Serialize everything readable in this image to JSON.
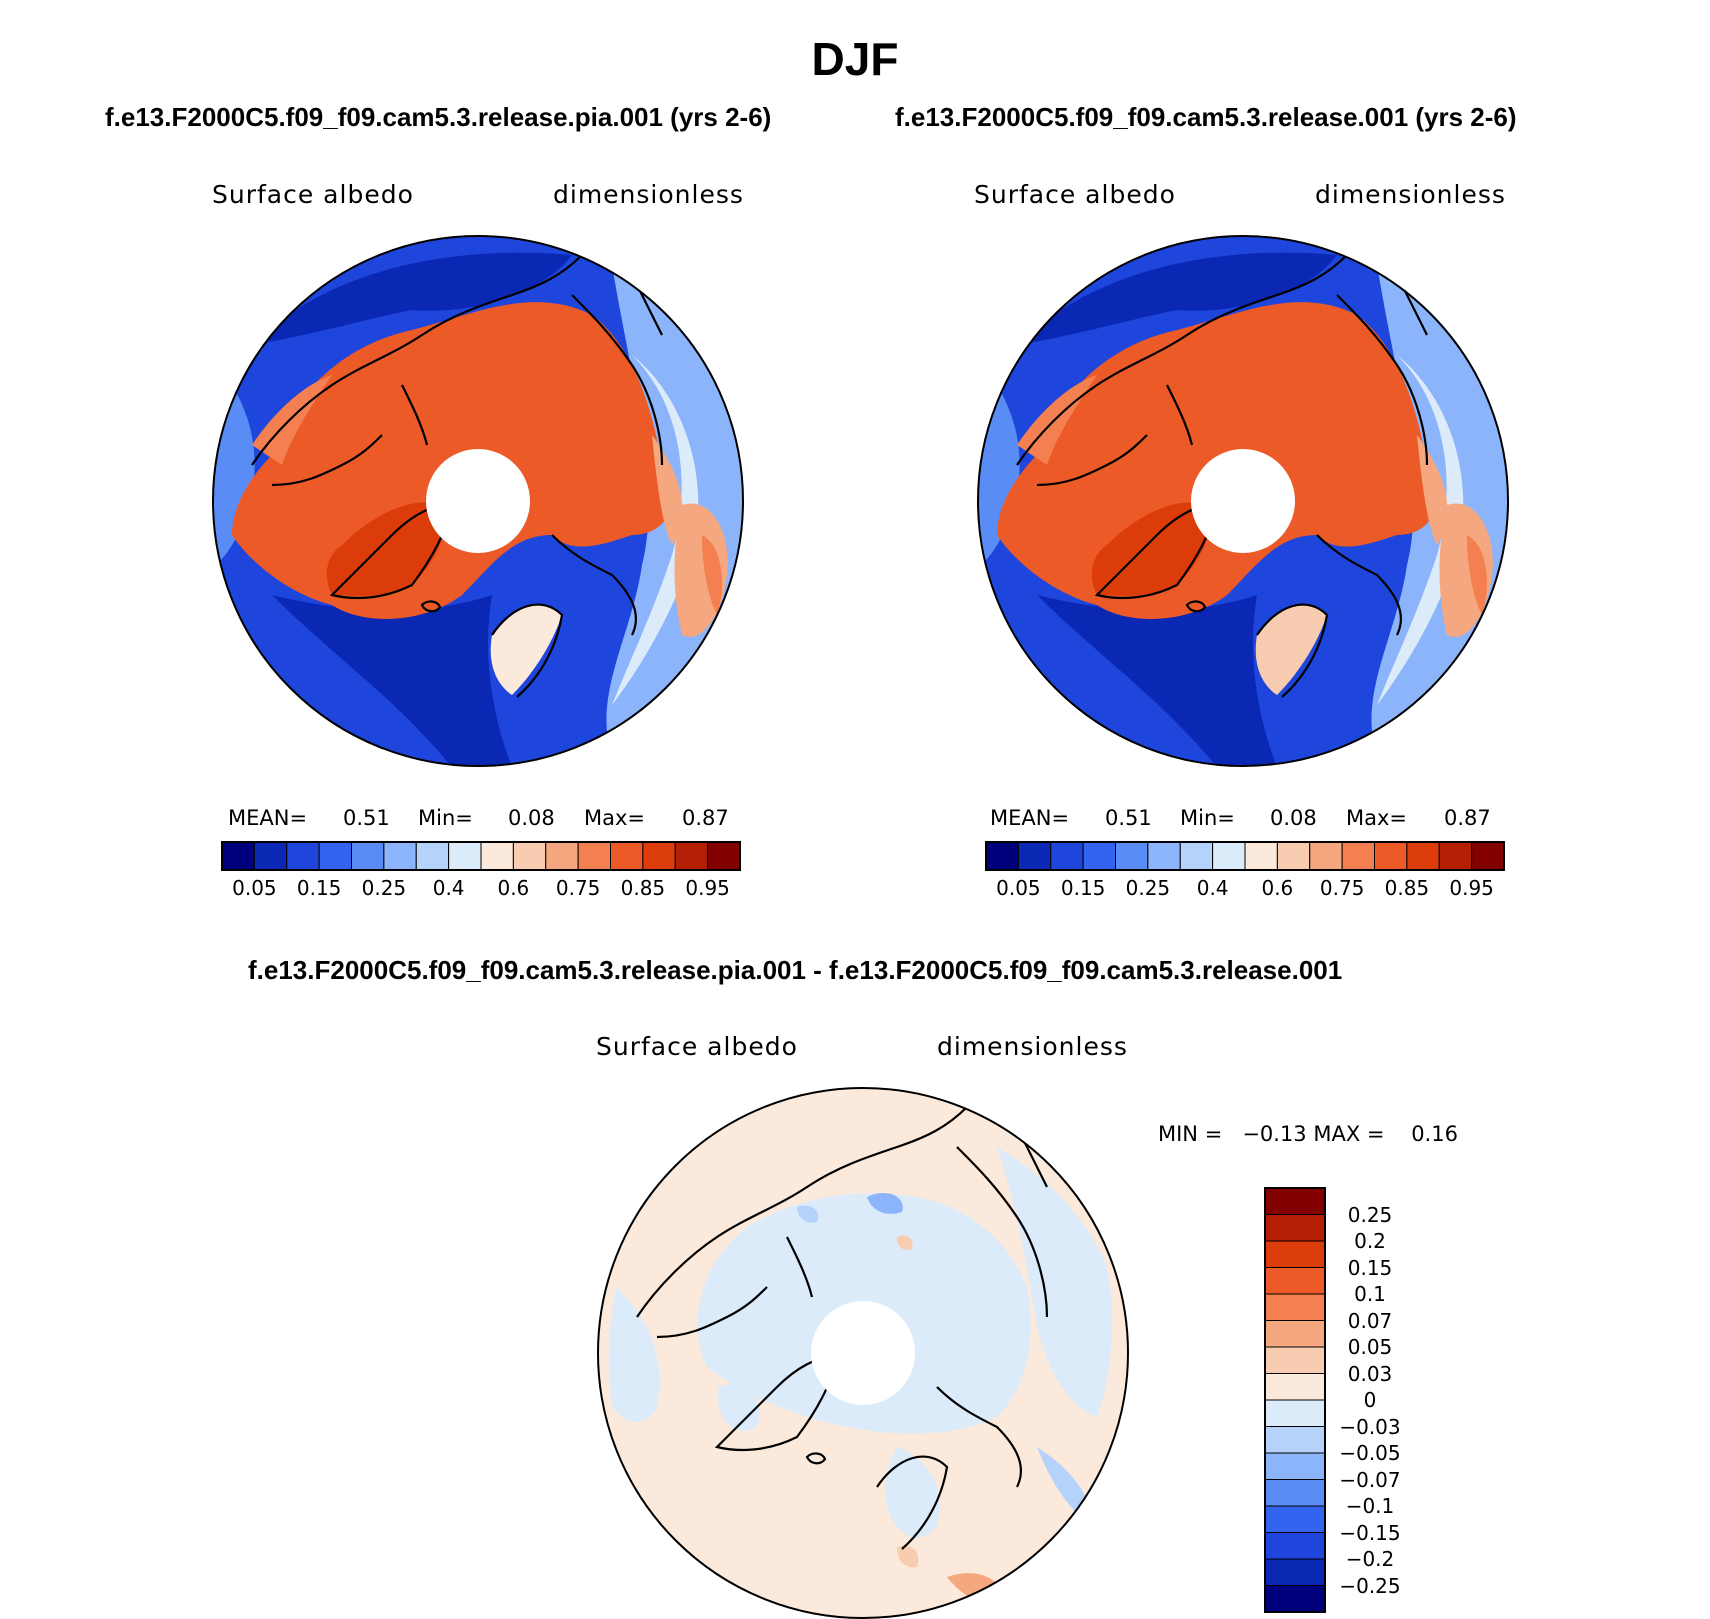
{
  "title": "DJF",
  "panels": {
    "case1": {
      "title": "f.e13.F2000C5.f09_f09.cam5.3.release.pia.001 (yrs 2-6)",
      "variable": "Surface albedo",
      "units": "dimensionless",
      "mean_label": "MEAN=",
      "mean_value": "0.51",
      "min_label": "Min=",
      "min_value": "0.08",
      "max_label": "Max=",
      "max_value": "0.87"
    },
    "case2": {
      "title": "f.e13.F2000C5.f09_f09.cam5.3.release.001 (yrs 2-6)",
      "variable": "Surface albedo",
      "units": "dimensionless",
      "mean_label": "MEAN=",
      "mean_value": "0.51",
      "min_label": "Min=",
      "min_value": "0.08",
      "max_label": "Max=",
      "max_value": "0.87"
    },
    "diff": {
      "title": "f.e13.F2000C5.f09_f09.cam5.3.release.pia.001 - f.e13.F2000C5.f09_f09.cam5.3.release.001",
      "variable": "Surface albedo",
      "units": "dimensionless",
      "minmax_text": "MIN =   −0.13 MAX =    0.16"
    }
  },
  "colorbars": {
    "absolute": {
      "colors": [
        "#00007d",
        "#0a28b4",
        "#1e46dc",
        "#3264f0",
        "#5a8cf5",
        "#8cb4fa",
        "#b4d2fa",
        "#dcebfa",
        "#fbeadc",
        "#f8ccb0",
        "#f5a880",
        "#f47f50",
        "#ec5a28",
        "#dc3c0a",
        "#b41e05",
        "#820000"
      ],
      "tick_labels": [
        "0.05",
        "0.15",
        "0.25",
        "0.4",
        "0.6",
        "0.75",
        "0.85",
        "0.95"
      ]
    },
    "difference": {
      "colors_top_to_bottom": [
        "#820000",
        "#b41e05",
        "#dc3c0a",
        "#ec5a28",
        "#f47f50",
        "#f5a880",
        "#f8ccb0",
        "#fbeadc",
        "#dcebfa",
        "#b4d2fa",
        "#8cb4fa",
        "#5a8cf5",
        "#3264f0",
        "#1e46dc",
        "#0a28b4",
        "#00007d"
      ],
      "tick_labels": [
        "0.25",
        "0.2",
        "0.15",
        "0.1",
        "0.07",
        "0.05",
        "0.03",
        "0",
        "−0.03",
        "−0.05",
        "−0.07",
        "−0.1",
        "−0.15",
        "−0.2",
        "−0.25"
      ]
    }
  }
}
